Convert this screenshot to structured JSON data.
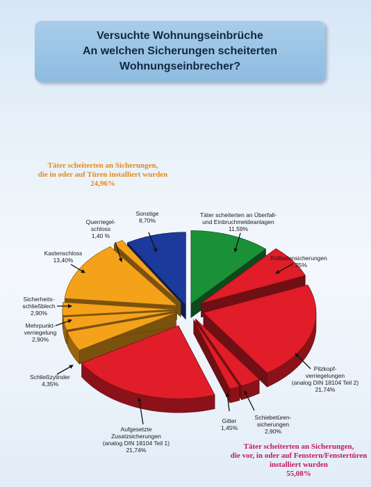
{
  "header": {
    "title_lines": [
      "Versuchte Wohnungseinbrüche",
      "An welchen Sicherungen scheiterten",
      "Wohnungseinbrecher?"
    ]
  },
  "groups": {
    "doors": {
      "lines": [
        "Täter scheiterten an Sicherungen,",
        "die in oder auf Türen installiert wurden"
      ],
      "value": "24,96%",
      "color": "#e38a17"
    },
    "windows": {
      "lines": [
        "Täter scheiterten an Sicherungen,",
        "die vor, in oder auf Fenstern/Fenstertüren",
        "installiert wurden"
      ],
      "value": "55,08%",
      "color": "#c4175c"
    }
  },
  "chart_data": {
    "type": "pie",
    "style": "3d-exploded",
    "slices": [
      {
        "label": [
          "Täter scheiterten an Überfall-",
          "und Einbruchmeldeanlagen"
        ],
        "value_label": "11,59%",
        "value": 11.59,
        "color": "#1a9137",
        "group": "alarm"
      },
      {
        "label": [
          "Rollladensicherungen"
        ],
        "value_label": "7,25%",
        "value": 7.25,
        "color": "#e01d28",
        "group": "windows"
      },
      {
        "label": [
          "Pilzkopf-",
          "verriegelungen",
          "(analog DIN 18104 Teil 2)"
        ],
        "value_label": "21,74%",
        "value": 21.74,
        "color": "#e01d28",
        "group": "windows"
      },
      {
        "label": [
          "Schiebetüren-",
          "sicherungen"
        ],
        "value_label": "2,90%",
        "value": 2.9,
        "color": "#e01d28",
        "group": "windows"
      },
      {
        "label": [
          "Gitter"
        ],
        "value_label": "1,45%",
        "value": 1.45,
        "color": "#e01d28",
        "group": "windows"
      },
      {
        "label": [
          "Aufgesetzte",
          "Zusatzsicherungen",
          "(analog DIN 18104 Teil 1)"
        ],
        "value_label": "21,74%",
        "value": 21.74,
        "color": "#e01d28",
        "group": "windows"
      },
      {
        "label": [
          "Schließzylinder"
        ],
        "value_label": "4,35%",
        "value": 4.35,
        "color": "#f5a21b",
        "group": "doors"
      },
      {
        "label": [
          "Mehrpunkt-",
          "verriegelung"
        ],
        "value_label": "2,90%",
        "value": 2.9,
        "color": "#f5a21b",
        "group": "doors"
      },
      {
        "label": [
          "Sicherheits-",
          "schließblech"
        ],
        "value_label": "2,90%",
        "value": 2.9,
        "color": "#f5a21b",
        "group": "doors"
      },
      {
        "label": [
          "Kastenschloss"
        ],
        "value_label": "13,40%",
        "value": 13.4,
        "color": "#f5a21b",
        "group": "doors"
      },
      {
        "label": [
          "Querriegel-",
          "schloss"
        ],
        "value_label": "1,40 %",
        "value": 1.4,
        "color": "#f5a21b",
        "group": "doors"
      },
      {
        "label": [
          "Sonstige"
        ],
        "value_label": "8,70%",
        "value": 8.7,
        "color": "#1c3a9c",
        "group": "other"
      }
    ]
  }
}
